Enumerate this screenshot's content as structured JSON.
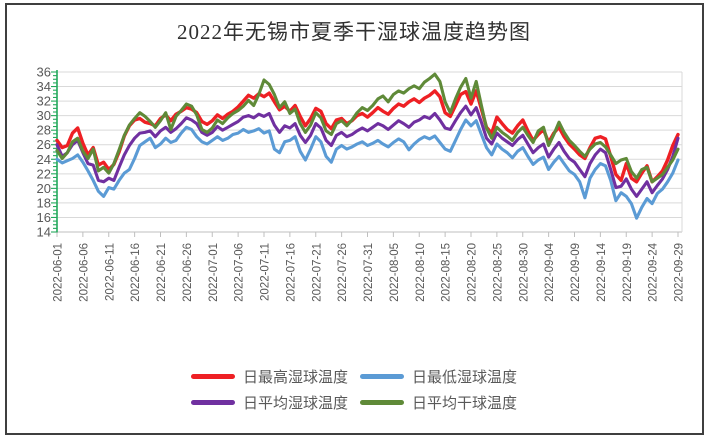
{
  "figure": {
    "title": "2022年无锡市夏季干湿球温度趋势图"
  },
  "colors": {
    "series_max_wet": "#ee2024",
    "series_min_wet": "#5b9bd5",
    "series_avg_wet": "#7030a0",
    "series_avg_dry": "#5f8a38",
    "gridline": "#d9d9d9",
    "axis_line": "#bfbfbf",
    "axis_text": "#595959",
    "y_axis_ruler": "#23a95c",
    "frame_border": "#3f3f3f",
    "title_text": "#303030"
  },
  "chart_data": {
    "type": "line",
    "title": "2022年无锡市夏季干湿球温度趋势图",
    "xlabel": "",
    "ylabel": "",
    "ylim": [
      14,
      36
    ],
    "y_tick_step": 2,
    "y_tick_labels": [
      "36",
      "34",
      "32",
      "30",
      "28",
      "26",
      "24",
      "22",
      "20",
      "18",
      "16",
      "14"
    ],
    "grid": true,
    "legend_position": "bottom",
    "x_start": "2022-06-01",
    "x_end": "2022-09-29",
    "x_tick_every_days": 5,
    "x_tick_labels": [
      "2022-06-01",
      "2022-06-06",
      "2022-06-11",
      "2022-06-16",
      "2022-06-21",
      "2022-06-26",
      "2022-07-01",
      "2022-07-06",
      "2022-07-11",
      "2022-07-16",
      "2022-07-21",
      "2022-07-26",
      "2022-07-31",
      "2022-08-05",
      "2022-08-10",
      "2022-08-15",
      "2022-08-20",
      "2022-08-25",
      "2022-08-30",
      "2022-09-04",
      "2022-09-09",
      "2022-09-14",
      "2022-09-19",
      "2022-09-24",
      "2022-09-29"
    ],
    "series": [
      {
        "name": "日最高湿球温度",
        "color": "#ee2024",
        "values": [
          26.6,
          25.6,
          25.9,
          27.6,
          28.3,
          26.2,
          24.6,
          25.6,
          23.2,
          23.6,
          22.6,
          23.3,
          25.0,
          27.2,
          28.6,
          29.4,
          29.6,
          29.1,
          28.9,
          28.6,
          29.6,
          30.1,
          29.3,
          30.2,
          30.6,
          31.1,
          30.9,
          30.4,
          29.2,
          28.8,
          29.3,
          30.1,
          29.6,
          30.2,
          30.6,
          31.2,
          32.0,
          32.8,
          32.4,
          33.0,
          32.6,
          33.1,
          31.9,
          30.8,
          31.3,
          30.6,
          31.4,
          29.9,
          28.6,
          29.6,
          31.0,
          30.6,
          28.9,
          28.2,
          29.4,
          29.6,
          28.9,
          29.3,
          30.0,
          30.3,
          29.8,
          30.4,
          31.1,
          30.6,
          30.2,
          31.0,
          31.6,
          31.3,
          31.9,
          32.3,
          31.8,
          32.4,
          32.8,
          33.4,
          32.6,
          30.4,
          29.9,
          31.4,
          32.9,
          33.3,
          31.6,
          33.4,
          30.9,
          28.4,
          27.6,
          29.8,
          28.9,
          28.1,
          27.6,
          28.6,
          29.4,
          27.9,
          26.6,
          27.4,
          28.1,
          26.3,
          27.6,
          28.4,
          27.1,
          26.1,
          25.4,
          24.6,
          24.1,
          25.6,
          26.9,
          27.1,
          26.8,
          24.4,
          21.9,
          21.1,
          23.4,
          21.4,
          20.9,
          22.1,
          23.1,
          20.9,
          21.6,
          22.4,
          23.9,
          25.9,
          27.4
        ]
      },
      {
        "name": "日最低湿球温度",
        "color": "#5b9bd5",
        "values": [
          24.0,
          23.5,
          23.8,
          24.1,
          24.6,
          23.6,
          22.4,
          21.1,
          19.6,
          18.9,
          20.1,
          19.9,
          21.1,
          22.1,
          22.6,
          24.1,
          25.9,
          26.4,
          26.9,
          25.6,
          26.1,
          26.9,
          26.3,
          26.6,
          27.6,
          28.4,
          28.1,
          27.1,
          26.4,
          26.1,
          26.6,
          27.1,
          26.6,
          26.9,
          27.4,
          27.6,
          28.1,
          27.7,
          27.9,
          28.2,
          27.6,
          27.9,
          25.4,
          24.9,
          26.4,
          26.6,
          27.1,
          25.1,
          23.9,
          25.4,
          27.1,
          26.4,
          24.4,
          23.6,
          25.4,
          25.9,
          25.4,
          25.7,
          26.1,
          26.4,
          25.9,
          26.2,
          26.6,
          26.1,
          25.7,
          26.3,
          26.8,
          26.4,
          25.3,
          26.1,
          26.7,
          27.1,
          26.8,
          27.2,
          26.3,
          25.4,
          25.1,
          26.6,
          28.1,
          29.4,
          28.6,
          29.3,
          27.4,
          25.6,
          24.6,
          26.1,
          25.4,
          24.9,
          24.2,
          25.1,
          25.6,
          24.4,
          23.3,
          23.9,
          24.3,
          22.6,
          23.6,
          24.4,
          23.4,
          22.4,
          21.9,
          20.9,
          18.7,
          21.4,
          22.6,
          23.4,
          23.1,
          21.1,
          18.3,
          19.4,
          18.9,
          17.9,
          15.9,
          17.4,
          18.6,
          17.9,
          19.3,
          19.9,
          20.9,
          22.1,
          23.9
        ]
      },
      {
        "name": "日平均湿球温度",
        "color": "#7030a0",
        "values": [
          26.0,
          24.4,
          24.9,
          26.0,
          26.6,
          24.9,
          23.4,
          23.2,
          21.1,
          20.9,
          21.4,
          21.1,
          22.9,
          24.6,
          25.9,
          26.9,
          27.6,
          27.7,
          27.9,
          27.1,
          27.9,
          28.4,
          27.7,
          28.2,
          28.9,
          29.7,
          29.4,
          28.9,
          27.7,
          27.3,
          27.7,
          28.5,
          28.0,
          28.4,
          28.8,
          29.2,
          29.8,
          30.0,
          29.7,
          30.2,
          29.9,
          30.3,
          28.7,
          27.7,
          28.6,
          28.3,
          28.9,
          27.3,
          26.3,
          27.3,
          28.9,
          28.3,
          26.6,
          25.9,
          27.3,
          27.7,
          27.1,
          27.4,
          27.9,
          28.3,
          27.9,
          28.4,
          28.9,
          28.6,
          28.1,
          28.7,
          29.3,
          28.9,
          28.4,
          29.1,
          29.4,
          29.9,
          29.6,
          30.3,
          29.4,
          28.3,
          28.1,
          29.3,
          30.4,
          31.3,
          30.1,
          31.1,
          29.1,
          26.9,
          26.1,
          27.6,
          26.9,
          26.4,
          25.9,
          26.7,
          27.3,
          26.1,
          24.9,
          25.6,
          26.1,
          24.3,
          25.4,
          26.3,
          25.1,
          24.1,
          23.6,
          22.6,
          21.6,
          23.4,
          24.6,
          25.4,
          24.9,
          22.6,
          20.1,
          20.3,
          21.3,
          19.9,
          18.9,
          19.9,
          20.9,
          19.4,
          20.4,
          21.3,
          22.6,
          24.4,
          26.9
        ]
      },
      {
        "name": "日平均干球温度",
        "color": "#5f8a38",
        "values": [
          25.2,
          24.1,
          24.9,
          26.4,
          26.9,
          25.1,
          24.1,
          25.4,
          22.4,
          22.9,
          22.1,
          23.4,
          25.3,
          27.3,
          28.7,
          29.6,
          30.4,
          29.9,
          29.2,
          28.4,
          29.3,
          30.4,
          28.1,
          29.9,
          30.7,
          31.6,
          31.3,
          30.1,
          28.1,
          27.7,
          28.3,
          29.4,
          28.9,
          29.7,
          30.3,
          30.7,
          31.3,
          32.1,
          31.4,
          32.9,
          34.9,
          34.3,
          32.9,
          31.1,
          31.9,
          30.3,
          30.9,
          28.9,
          27.7,
          28.7,
          30.4,
          29.7,
          27.9,
          27.4,
          28.9,
          29.3,
          28.6,
          29.4,
          30.4,
          31.1,
          30.7,
          31.4,
          32.3,
          32.7,
          31.9,
          32.9,
          33.4,
          33.1,
          33.7,
          34.1,
          33.7,
          34.6,
          35.1,
          35.7,
          34.7,
          31.9,
          30.4,
          32.3,
          33.9,
          35.1,
          32.4,
          34.7,
          31.4,
          28.3,
          26.9,
          28.4,
          27.7,
          27.2,
          26.6,
          27.7,
          28.4,
          27.3,
          26.3,
          27.9,
          28.4,
          25.9,
          27.4,
          29.1,
          27.7,
          26.6,
          25.9,
          25.1,
          24.4,
          25.4,
          26.1,
          26.3,
          25.7,
          24.6,
          23.4,
          23.9,
          24.1,
          22.3,
          21.4,
          22.6,
          22.9,
          20.9,
          21.4,
          21.9,
          22.9,
          23.9,
          25.4
        ]
      }
    ]
  },
  "legend": {
    "rows": [
      [
        "日最高湿球温度",
        "日最低湿球温度"
      ],
      [
        "日平均湿球温度",
        "日平均干球温度"
      ]
    ]
  }
}
